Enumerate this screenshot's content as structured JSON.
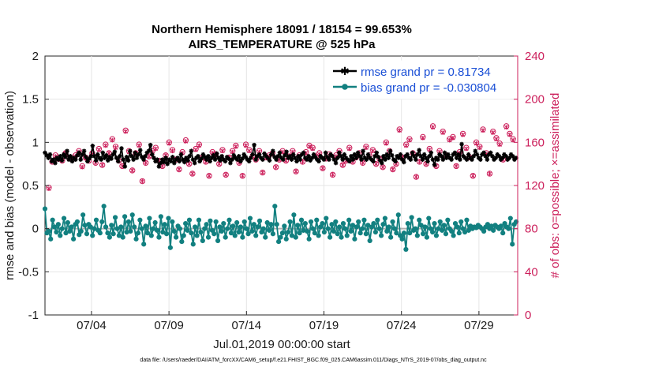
{
  "chart_data": {
    "type": "line",
    "title_line1": "Northern Hemisphere 18091 / 18154 = 99.653%",
    "title_line2": "AIRS_TEMPERATURE @ 525 hPa",
    "xlabel": "Jul.01,2019 00:00:00 start",
    "ylabel_left": "rmse and bias (model - observation)",
    "ylabel_right": "# of obs: o=possible; ×=assimilated",
    "ylim_left": [
      -1,
      2
    ],
    "ylim_right": [
      0,
      240
    ],
    "xlim_days": [
      1.0,
      31.5
    ],
    "y_ticks_left": [
      "-1",
      "-0.5",
      "0",
      "0.5",
      "1",
      "1.5",
      "2"
    ],
    "y_ticks_right": [
      "0",
      "40",
      "80",
      "120",
      "160",
      "200",
      "240"
    ],
    "x_ticks": [
      {
        "label": "07/04",
        "day": 4
      },
      {
        "label": "07/09",
        "day": 9
      },
      {
        "label": "07/14",
        "day": 14
      },
      {
        "label": "07/19",
        "day": 19
      },
      {
        "label": "07/24",
        "day": 24
      },
      {
        "label": "07/29",
        "day": 29
      }
    ],
    "legend": [
      {
        "label": "rmse grand pr = 0.81734",
        "color": "#000000"
      },
      {
        "label": "bias grand pr = -0.030804",
        "color": "#128080"
      }
    ],
    "series": [
      {
        "name": "rmse",
        "color": "#000000",
        "values": [
          0.88,
          0.85,
          0.82,
          0.86,
          0.78,
          0.8,
          0.76,
          0.82,
          0.8,
          0.84,
          0.79,
          0.86,
          0.83,
          0.9,
          0.8,
          0.84,
          0.78,
          0.82,
          0.8,
          0.85,
          0.88,
          0.8,
          0.86,
          0.9,
          0.83,
          0.78,
          0.81,
          0.84,
          0.96,
          0.84,
          0.79,
          0.86,
          0.82,
          0.8,
          0.88,
          0.82,
          0.85,
          0.79,
          0.83,
          0.81,
          0.86,
          0.89,
          0.82,
          0.78,
          0.84,
          0.93,
          0.8,
          0.72,
          0.83,
          0.79,
          0.9,
          0.84,
          0.8,
          0.88,
          0.82,
          0.86,
          0.91,
          0.83,
          0.8,
          0.84,
          0.88,
          0.9,
          0.97,
          0.86,
          0.82,
          0.78,
          0.8,
          0.72,
          0.76,
          0.8,
          0.77,
          0.82,
          0.75,
          0.8,
          0.78,
          0.83,
          0.76,
          0.8,
          0.82,
          0.78,
          0.86,
          0.8,
          0.77,
          0.82,
          0.79,
          0.84,
          0.9,
          0.8,
          0.76,
          0.82,
          0.84,
          0.78,
          0.81,
          0.86,
          0.83,
          0.8,
          0.84,
          0.78,
          0.82,
          0.85,
          0.8,
          0.87,
          0.82,
          0.79,
          0.84,
          0.8,
          0.78,
          0.83,
          0.81,
          0.76,
          0.8,
          0.85,
          0.82,
          0.8,
          0.84,
          0.78,
          0.81,
          0.86,
          0.83,
          0.8,
          0.78,
          0.82,
          0.86,
          0.97,
          0.8,
          0.84,
          0.86,
          0.82,
          0.8,
          0.87,
          0.84,
          0.82,
          0.79,
          0.86,
          0.9,
          0.83,
          0.8,
          0.84,
          0.88,
          0.82,
          0.8,
          0.85,
          0.89,
          0.82,
          0.84,
          0.8,
          0.86,
          0.82,
          0.78,
          0.84,
          0.8,
          0.86,
          0.88,
          0.82,
          0.8,
          0.84,
          0.79,
          0.82,
          0.86,
          0.83,
          0.8,
          0.78,
          0.84,
          0.82,
          0.8,
          0.88,
          0.83,
          0.8,
          0.86,
          0.84,
          0.8,
          0.76,
          0.82,
          0.88,
          0.84,
          0.8,
          0.86,
          0.82,
          0.8,
          0.78,
          0.84,
          0.8,
          0.86,
          0.82,
          0.88,
          0.84,
          0.8,
          0.9,
          0.82,
          0.8,
          0.86,
          0.82,
          0.8,
          0.78,
          0.84,
          0.88,
          0.83,
          0.79,
          0.76,
          0.84,
          0.8,
          0.86,
          0.82,
          0.9,
          0.85,
          0.8,
          0.78,
          0.84,
          0.82,
          0.86,
          0.8,
          0.77,
          0.84,
          0.86,
          0.82,
          0.8,
          0.88,
          0.84,
          0.8,
          0.86,
          0.91,
          0.84,
          0.8,
          0.86,
          0.82,
          0.78,
          0.84,
          0.88,
          0.8,
          0.74,
          0.82,
          0.8,
          0.86,
          0.84,
          0.8,
          0.88,
          0.82,
          0.86,
          0.82,
          0.8,
          0.86,
          0.88,
          0.82,
          0.86,
          0.8,
          0.98,
          0.84,
          0.82,
          0.8,
          0.86,
          0.82,
          0.8,
          0.84,
          0.9,
          0.86,
          0.82,
          0.8,
          0.86,
          0.88,
          0.84,
          0.8,
          0.86,
          0.88,
          0.84,
          0.8,
          0.82,
          0.86,
          0.84,
          0.8,
          0.82,
          0.86,
          0.84,
          0.8,
          0.82,
          0.86,
          0.84,
          0.8,
          0.82
        ]
      },
      {
        "name": "bias",
        "color": "#128080",
        "values": [
          0.23,
          -0.05,
          -0.03,
          -0.12,
          0.1,
          0.02,
          -0.04,
          0.05,
          -0.08,
          0.0,
          0.12,
          -0.05,
          0.07,
          -0.03,
          0.02,
          -0.12,
          0.05,
          0.08,
          -0.07,
          -0.03,
          0.16,
          0.04,
          -0.06,
          0.05,
          0.02,
          -0.08,
          0.0,
          0.1,
          -0.02,
          -0.05,
          0.08,
          0.26,
          0.02,
          -0.05,
          -0.1,
          0.04,
          -0.06,
          0.13,
          0.0,
          -0.08,
          0.02,
          -0.1,
          0.14,
          -0.04,
          0.08,
          -0.03,
          0.16,
          0.02,
          -0.12,
          -0.05,
          0.1,
          0.0,
          -0.18,
          0.03,
          -0.05,
          0.12,
          -0.08,
          0.0,
          0.07,
          -0.02,
          -0.1,
          0.14,
          -0.04,
          0.05,
          -0.06,
          0.12,
          -0.22,
          0.08,
          -0.03,
          -0.1,
          0.03,
          0.0,
          -0.15,
          -0.08,
          0.06,
          -0.02,
          0.1,
          -0.05,
          -0.18,
          0.02,
          -0.08,
          0.1,
          -0.04,
          -0.14,
          0.0,
          0.05,
          -0.1,
          0.09,
          -0.02,
          -0.06,
          0.08,
          -0.14,
          0.02,
          -0.03,
          0.06,
          -0.1,
          0.0,
          0.1,
          -0.05,
          0.03,
          -0.08,
          0.07,
          -0.04,
          0.02,
          -0.1,
          0.08,
          0.0,
          -0.06,
          0.12,
          -0.03,
          0.05,
          -0.08,
          0.02,
          0.09,
          -0.04,
          0.0,
          -0.1,
          0.07,
          -0.02,
          0.05,
          -0.06,
          0.26,
          0.05,
          -0.15,
          -0.1,
          -0.05,
          0.03,
          -0.12,
          -0.04,
          0.08,
          -0.08,
          0.16,
          -0.1,
          0.04,
          -0.05,
          0.1,
          -0.02,
          0.06,
          -0.03,
          -0.12,
          0.08,
          0.0,
          -0.05,
          0.1,
          -0.08,
          0.02,
          0.06,
          -0.04,
          0.12,
          0.0,
          -0.1,
          0.05,
          -0.03,
          0.08,
          -0.06,
          0.02,
          -0.1,
          0.06,
          0.0,
          -0.08,
          0.1,
          -0.03,
          0.04,
          -0.12,
          0.02,
          0.08,
          -0.05,
          0.0,
          0.1,
          -0.06,
          0.04,
          -0.14,
          0.02,
          0.06,
          -0.04,
          0.1,
          0.0,
          -0.08,
          0.05,
          0.12,
          -0.03,
          0.02,
          -0.1,
          0.08,
          0.0,
          -0.05,
          0.16,
          -0.08,
          -0.12,
          -0.05,
          -0.24,
          0.06,
          -0.05,
          0.13,
          -0.02,
          0.0,
          -0.08,
          0.1,
          0.04,
          -0.06,
          0.02,
          -0.1,
          0.12,
          0.0,
          -0.04,
          0.06,
          -0.08,
          0.0,
          0.08,
          -0.02,
          0.04,
          -0.06,
          0.1,
          0.0,
          -0.03,
          -0.08,
          0.06,
          0.02,
          -0.05,
          0.08,
          0.0,
          -0.04,
          0.1,
          -0.02,
          0.03,
          0.0,
          0.02,
          0.01,
          0.04,
          0.02,
          0.0,
          -0.03,
          0.02,
          0.05,
          0.0,
          0.03,
          -0.02,
          0.04,
          0.02,
          0.0,
          0.03,
          -0.05,
          0.06,
          0.02,
          0.0,
          0.12,
          -0.18,
          0.05,
          0.08
        ]
      },
      {
        "name": "obs_possible",
        "color": "#cc1f5b",
        "values": [
          118,
          142,
          148,
          145,
          143,
          150,
          146,
          144,
          148,
          152,
          138,
          146,
          143,
          150,
          141,
          154,
          139,
          158,
          150,
          163,
          156,
          143,
          138,
          171,
          152,
          134,
          150,
          158,
          124,
          141,
          147,
          152,
          155,
          143,
          138,
          148,
          160,
          153,
          144,
          135,
          151,
          162,
          140,
          131,
          154,
          158,
          146,
          142,
          129,
          151,
          149,
          140,
          153,
          130,
          146,
          152,
          157,
          141,
          129,
          158,
          153,
          147,
          144,
          152,
          132,
          146,
          148,
          150,
          137,
          144,
          152,
          143,
          147,
          152,
          133,
          148,
          142,
          151,
          157,
          155,
          147,
          150,
          136,
          145,
          149,
          130,
          148,
          152,
          139,
          143,
          155,
          142,
          146,
          150,
          141,
          156,
          148,
          153,
          140,
          145,
          137,
          160,
          152,
          135,
          140,
          172,
          146,
          158,
          163,
          150,
          128,
          142,
          165,
          140,
          154,
          175,
          138,
          152,
          170,
          148,
          163,
          165,
          138,
          151,
          168,
          155,
          146,
          129,
          160,
          156,
          172,
          150,
          131,
          170,
          164,
          159,
          144,
          175,
          168,
          163
        ]
      },
      {
        "name": "obs_assimilated",
        "color": "#cc1f5b",
        "values": [
          117,
          142,
          147,
          144,
          143,
          150,
          145,
          144,
          147,
          151,
          137,
          145,
          143,
          149,
          141,
          153,
          139,
          157,
          150,
          162,
          155,
          143,
          138,
          170,
          151,
          134,
          150,
          157,
          124,
          141,
          147,
          151,
          154,
          143,
          138,
          148,
          159,
          152,
          144,
          135,
          150,
          161,
          140,
          131,
          153,
          157,
          146,
          142,
          129,
          150,
          148,
          140,
          152,
          130,
          146,
          151,
          156,
          141,
          129,
          157,
          152,
          147,
          144,
          151,
          132,
          146,
          147,
          149,
          137,
          144,
          151,
          143,
          146,
          151,
          133,
          147,
          142,
          150,
          156,
          154,
          147,
          149,
          136,
          145,
          148,
          130,
          147,
          151,
          139,
          143,
          154,
          142,
          146,
          149,
          141,
          155,
          147,
          152,
          140,
          145,
          137,
          159,
          151,
          135,
          140,
          171,
          146,
          157,
          162,
          149,
          128,
          142,
          164,
          140,
          153,
          174,
          138,
          151,
          169,
          148,
          162,
          164,
          138,
          150,
          167,
          154,
          146,
          129,
          159,
          155,
          171,
          149,
          131,
          169,
          163,
          158,
          144,
          174,
          167,
          162
        ]
      },
      {
        "name": "zero_line",
        "color": "#b0b0b0",
        "values": [
          0,
          0
        ]
      }
    ]
  },
  "footer": {
    "data_file": "data file: /Users/raeder/DAI/ATM_forcXX/CAM6_setup/f.e21.FHIST_BGC.f09_025.CAM6assim.011/Diags_NTrS_2019-07/obs_diag_output.nc"
  }
}
